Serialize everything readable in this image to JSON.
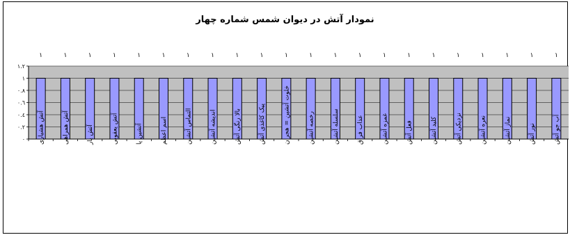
{
  "chart_data": {
    "type": "bar",
    "title": "نمودار آتش در دیوان شمس شماره چهار",
    "categories": [
      "آتش هشیاری",
      "آتش همراهی",
      "آتش یار",
      "آتش یعقوبی",
      "آتشین پا",
      "اسم اعظم",
      "التماس آتشین",
      "اندیشه آتشین",
      "بالا رنگی آتش",
      "پیک کاغذی آتش",
      "خلوت آتشین = هجران",
      "رخصه آتشین",
      "سلسله آتشین",
      "عذاب فراق",
      "غمزه آتشین",
      "فعل آتش",
      "کلید آتشین",
      "نزدیکی آتش",
      "نعره آتشین",
      "نماز آتشین",
      "نور آتش",
      "آب جو آتش"
    ],
    "values": [
      1,
      1,
      1,
      1,
      1,
      1,
      1,
      1,
      1,
      1,
      1,
      1,
      1,
      1,
      1,
      1,
      1,
      1,
      1,
      1,
      1,
      1
    ],
    "data_labels": [
      "١",
      "١",
      "١",
      "١",
      "١",
      "١",
      "١",
      "١",
      "١",
      "١",
      "١",
      "١",
      "١",
      "١",
      "١",
      "١",
      "١",
      "١",
      "١",
      "١",
      "١",
      "١"
    ],
    "y_ticks": [
      0,
      0.2,
      0.4,
      0.6,
      0.8,
      1,
      1.2
    ],
    "y_tick_labels": [
      "٠",
      "٠.٢",
      "٠.٤",
      "٠.٦",
      "٠.٨",
      "١",
      "١.٢"
    ],
    "ylim": [
      0,
      1.2
    ],
    "xlabel": "",
    "ylabel": "",
    "grid": true,
    "legend": "none",
    "colors": {
      "bar_fill": "#9999ff",
      "bar_stroke": "#000000",
      "plot_background": "#c0c0c0",
      "gridline": "#000000"
    }
  }
}
